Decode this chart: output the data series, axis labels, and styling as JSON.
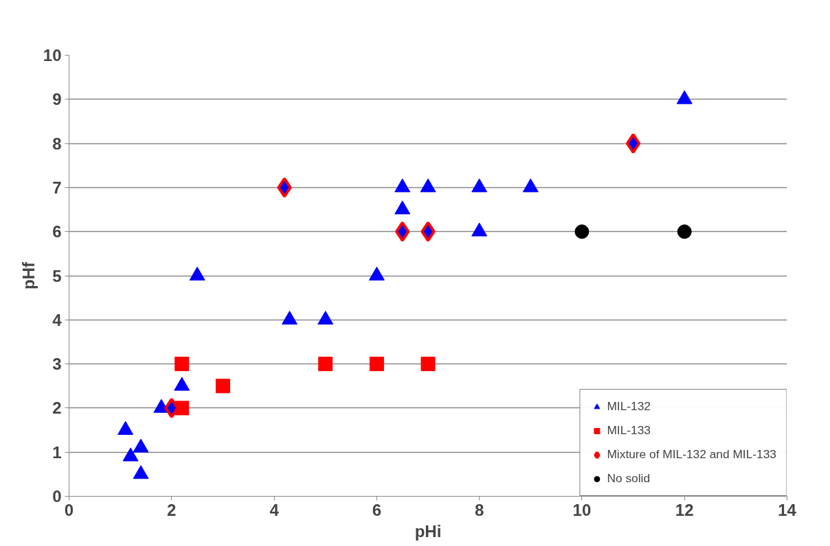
{
  "chart_data": {
    "type": "scatter",
    "xlabel": "pHi",
    "ylabel": "pHf",
    "xlim": [
      0,
      14
    ],
    "ylim": [
      0,
      10
    ],
    "xticks": [
      0,
      2,
      4,
      6,
      8,
      10,
      12,
      14
    ],
    "yticks": [
      0,
      1,
      2,
      3,
      4,
      5,
      6,
      7,
      8,
      9,
      10
    ],
    "grid": "y",
    "legend": "bottom right",
    "series": [
      {
        "name": "MIL-132",
        "color": "#0000ff",
        "marker": "triangle",
        "x": [
          1.1,
          1.2,
          1.4,
          1.4,
          1.8,
          2.2,
          2.5,
          4.3,
          5,
          6,
          6.5,
          6.5,
          7,
          8,
          9,
          8,
          12
        ],
        "values": [
          1.5,
          0.9,
          1.1,
          0.5,
          2,
          2.5,
          5,
          4,
          4,
          5,
          7,
          6.5,
          7,
          7,
          7,
          6,
          9
        ]
      },
      {
        "name": "MIL-133",
        "color": "#ff0000",
        "marker": "square",
        "x": [
          2.2,
          2.2,
          3,
          5,
          6,
          7
        ],
        "values": [
          3,
          2,
          2.5,
          3,
          3,
          3
        ]
      },
      {
        "name": "Mixture of MIL-132 and MIL-133",
        "color": "#ff0000",
        "marker": "diamond",
        "x": [
          2,
          4.2,
          6.5,
          7,
          11
        ],
        "values": [
          2,
          7,
          6,
          6,
          8
        ]
      },
      {
        "name": "No solid",
        "color": "#000000",
        "marker": "circle",
        "x": [
          10,
          12
        ],
        "values": [
          6,
          6
        ]
      }
    ]
  }
}
